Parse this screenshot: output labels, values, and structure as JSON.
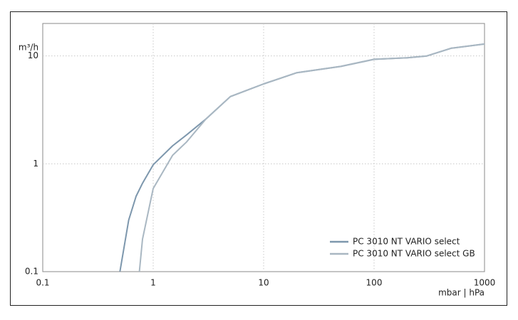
{
  "chart_data": {
    "type": "line",
    "y_label": "m³/h",
    "x_label": "mbar | hPa",
    "xscale": "log",
    "yscale": "log",
    "grid": true,
    "legend": "lower right",
    "xlim": [
      0.1,
      1000
    ],
    "xticks": [
      0.1,
      1,
      10,
      100,
      1000
    ],
    "ylim": [
      0.1,
      20
    ],
    "yticks": [
      0.1,
      1,
      10
    ],
    "series": [
      {
        "name": "PC 3010 NT VARIO select",
        "color": "#7d97ad",
        "x": [
          0.5,
          0.6,
          0.7,
          0.8,
          1,
          1.5,
          2,
          3,
          5,
          10,
          20,
          50,
          100,
          200,
          300,
          500,
          1000
        ],
        "values": [
          0.1,
          0.3,
          0.5,
          0.66,
          0.98,
          1.47,
          1.85,
          2.6,
          4.2,
          5.5,
          7.0,
          8.0,
          9.3,
          9.6,
          10,
          11.8,
          12.9
        ]
      },
      {
        "name": "PC 3010 NT VARIO select GB",
        "color": "#a9b7c2",
        "x": [
          0.75,
          0.8,
          1,
          1.5,
          2,
          3,
          5,
          10,
          20,
          50,
          100,
          200,
          300,
          500,
          1000
        ],
        "values": [
          0.1,
          0.2,
          0.59,
          1.2,
          1.59,
          2.6,
          4.2,
          5.5,
          7.0,
          8.0,
          9.3,
          9.6,
          10,
          11.8,
          12.9
        ]
      }
    ]
  }
}
